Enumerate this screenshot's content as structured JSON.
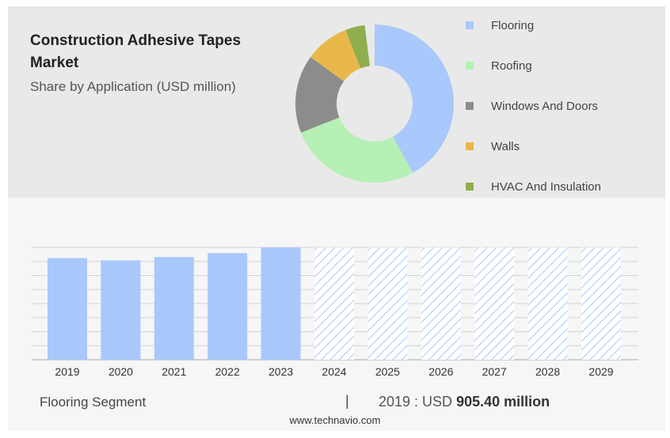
{
  "header": {
    "title": "Construction Adhesive Tapes Market",
    "subtitle": "Share by Application (USD million)"
  },
  "colors": {
    "bar_actual": "#a9c8fb",
    "bar_forecast_hatch": "#a9c8fb",
    "panel_top": "#e9e9e9",
    "panel_bottom": "#f6f6f6"
  },
  "chart_data": [
    {
      "type": "pie",
      "variant": "donut",
      "title": "Share by Application (USD million)",
      "slices": [
        {
          "name": "Flooring",
          "share": 0.42,
          "color": "#a9c8fb"
        },
        {
          "name": "Roofing",
          "share": 0.27,
          "color": "#b6f0b4"
        },
        {
          "name": "Windows And Doors",
          "share": 0.16,
          "color": "#8c8c8c"
        },
        {
          "name": "Walls",
          "share": 0.09,
          "color": "#e8b84a"
        },
        {
          "name": "HVAC And Insulation",
          "share": 0.04,
          "color": "#8fae4e"
        }
      ],
      "legend_position": "right"
    },
    {
      "type": "bar",
      "title": "Flooring Segment",
      "categories": [
        "2019",
        "2020",
        "2021",
        "2022",
        "2023",
        "2024",
        "2025",
        "2026",
        "2027",
        "2028",
        "2029"
      ],
      "values": [
        905.4,
        885,
        915,
        950,
        1000,
        null,
        null,
        null,
        null,
        null,
        null
      ],
      "forecast_categories": [
        "2024",
        "2025",
        "2026",
        "2027",
        "2028",
        "2029"
      ],
      "ylim": [
        0,
        1000
      ],
      "grid": true,
      "y_tick_labels_visible": false
    }
  ],
  "footer": {
    "segment_label": "Flooring Segment",
    "separator": "|",
    "value_prefix": "2019 : USD",
    "value_bold": "905.40 million",
    "source": "www.technavio.com"
  }
}
